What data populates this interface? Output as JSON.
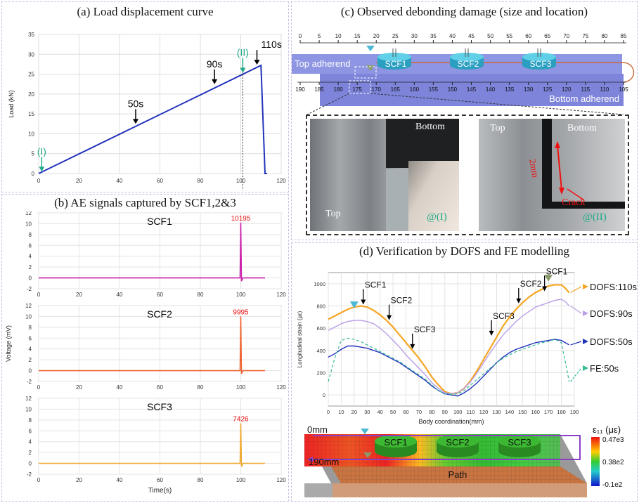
{
  "panels": {
    "a_title": "(a) Load displacement curve",
    "b_title": "(b) AE signals captured by SCF1,2&3",
    "c_title": "(c) Observed debonding damage (size and location)",
    "d_title": "(d) Verification by DOFS and FE modelling"
  },
  "colors": {
    "load_line": "#2233bb",
    "scf1": "#cc22aa",
    "scf2": "#ee6633",
    "scf3": "#eeaa33",
    "peak_label": "#ee1111",
    "marker_green": "#22aa88",
    "dofs110": "#f5a623",
    "dofs90": "#b99ee8",
    "dofs50": "#2233bb",
    "fe50": "#33bb99"
  },
  "chart_data": [
    {
      "id": "load-curve",
      "type": "line",
      "title": "(a) Load displacement curve",
      "xlabel": "",
      "ylabel": "Load (kN)",
      "xlim": [
        0,
        120
      ],
      "ylim": [
        0,
        35
      ],
      "xticks": [
        0,
        20,
        40,
        60,
        80,
        100,
        120
      ],
      "yticks": [
        0,
        5,
        10,
        15,
        20,
        25,
        30,
        35
      ],
      "grid": true,
      "series": [
        {
          "x": [
            0,
            110,
            110,
            112,
            113
          ],
          "y": [
            0,
            27.2,
            27.2,
            0,
            0
          ]
        }
      ],
      "annotations": [
        {
          "text": "(I)",
          "x": 1.5,
          "y": 0.3,
          "style": "green"
        },
        {
          "text": "50s",
          "x": 48,
          "y": 12.3
        },
        {
          "text": "90s",
          "x": 87,
          "y": 22.3
        },
        {
          "text": "(II)",
          "x": 101,
          "y": 25.2,
          "style": "green"
        },
        {
          "text": "110s",
          "x": 108,
          "y": 27.2
        }
      ]
    },
    {
      "id": "ae-signals",
      "type": "line",
      "title": "(b) AE signals captured by SCF1,2&3",
      "xlabel": "Time(s)",
      "ylabel": "Voltage (mV)",
      "xlim": [
        0,
        120
      ],
      "ylim": [
        -2,
        12
      ],
      "xticks": [
        0,
        20,
        40,
        60,
        80,
        100,
        120
      ],
      "yticks": [
        -2,
        0,
        2,
        4,
        6,
        8,
        10,
        12
      ],
      "grid": true,
      "series": [
        {
          "name": "SCF1",
          "peak_x": 100,
          "peak_y": 10.2,
          "peak_label": "10195",
          "end_x": 112
        },
        {
          "name": "SCF2",
          "peak_x": 100,
          "peak_y": 10.0,
          "peak_label": "9995",
          "end_x": 112
        },
        {
          "name": "SCF3",
          "peak_x": 100,
          "peak_y": 7.4,
          "peak_label": "7426",
          "end_x": 112
        }
      ]
    },
    {
      "id": "dofs-strain",
      "type": "line",
      "xlabel": "Body coordination(mm)",
      "ylabel": "Longitudinal strain (με)",
      "xlim": [
        0,
        190
      ],
      "ylim": [
        -100,
        1100
      ],
      "xticks": [
        0,
        10,
        20,
        30,
        40,
        50,
        60,
        70,
        80,
        90,
        100,
        110,
        120,
        130,
        140,
        150,
        160,
        170,
        180,
        190
      ],
      "yticks": [
        0,
        200,
        400,
        600,
        800,
        1000
      ],
      "grid": true,
      "legend": "right",
      "series": [
        {
          "name": "DOFS:110s",
          "x": [
            0,
            5,
            10,
            15,
            20,
            25,
            30,
            35,
            40,
            45,
            50,
            55,
            60,
            65,
            70,
            75,
            80,
            85,
            90,
            95,
            100,
            105,
            110,
            115,
            120,
            125,
            130,
            135,
            140,
            145,
            150,
            155,
            160,
            165,
            170,
            175,
            180,
            183,
            186
          ],
          "y": [
            680,
            710,
            740,
            770,
            790,
            800,
            790,
            760,
            720,
            670,
            610,
            540,
            470,
            400,
            330,
            250,
            160,
            90,
            30,
            10,
            20,
            60,
            130,
            220,
            320,
            420,
            520,
            620,
            700,
            770,
            830,
            880,
            920,
            950,
            980,
            990,
            990,
            960,
            920
          ]
        },
        {
          "name": "DOFS:90s",
          "x": [
            0,
            5,
            10,
            15,
            20,
            25,
            30,
            35,
            40,
            45,
            50,
            55,
            60,
            65,
            70,
            75,
            80,
            85,
            90,
            95,
            100,
            105,
            110,
            115,
            120,
            125,
            130,
            135,
            140,
            145,
            150,
            155,
            160,
            165,
            170,
            175,
            180,
            183,
            186
          ],
          "y": [
            580,
            610,
            640,
            660,
            670,
            670,
            660,
            640,
            600,
            550,
            490,
            430,
            360,
            300,
            240,
            180,
            110,
            60,
            20,
            10,
            20,
            60,
            120,
            200,
            290,
            380,
            460,
            540,
            600,
            660,
            710,
            750,
            790,
            810,
            830,
            850,
            860,
            840,
            800
          ]
        },
        {
          "name": "DOFS:50s",
          "x": [
            0,
            5,
            10,
            15,
            20,
            25,
            30,
            35,
            40,
            45,
            50,
            55,
            60,
            65,
            70,
            75,
            80,
            85,
            90,
            95,
            100,
            105,
            110,
            115,
            120,
            125,
            130,
            135,
            140,
            145,
            150,
            155,
            160,
            165,
            170,
            175,
            180,
            183,
            186
          ],
          "y": [
            340,
            370,
            410,
            440,
            440,
            430,
            420,
            400,
            380,
            350,
            320,
            290,
            250,
            210,
            170,
            130,
            80,
            40,
            10,
            0,
            -10,
            20,
            60,
            110,
            170,
            230,
            290,
            340,
            380,
            410,
            430,
            450,
            470,
            480,
            490,
            500,
            490,
            470,
            450
          ]
        },
        {
          "name": "FE:50s",
          "x": [
            0,
            5,
            10,
            15,
            20,
            25,
            30,
            35,
            40,
            45,
            50,
            55,
            60,
            65,
            70,
            75,
            80,
            85,
            90,
            95,
            100,
            105,
            110,
            115,
            120,
            125,
            130,
            135,
            140,
            145,
            150,
            155,
            160,
            165,
            170,
            175,
            180,
            183,
            186
          ],
          "y": [
            120,
            330,
            490,
            510,
            500,
            480,
            450,
            420,
            390,
            360,
            330,
            300,
            260,
            220,
            180,
            140,
            90,
            40,
            10,
            5,
            10,
            40,
            90,
            140,
            190,
            240,
            290,
            330,
            360,
            390,
            410,
            430,
            450,
            470,
            480,
            500,
            470,
            300,
            120
          ]
        }
      ],
      "annotations": [
        {
          "text": "SCF1",
          "x": 27,
          "y": 800
        },
        {
          "text": "SCF2",
          "x": 47,
          "y": 660
        },
        {
          "text": "SCF3",
          "x": 65,
          "y": 400
        },
        {
          "text": "SCF3",
          "x": 126,
          "y": 520
        },
        {
          "text": "SCF2",
          "x": 147,
          "y": 810
        },
        {
          "text": "SCF1",
          "x": 167,
          "y": 920
        }
      ]
    }
  ],
  "panel_c": {
    "top_ruler": [
      "0",
      "5",
      "10",
      "15",
      "20",
      "25",
      "30",
      "35",
      "40",
      "45",
      "50",
      "55",
      "60",
      "65",
      "70",
      "75",
      "80",
      "85"
    ],
    "bottom_ruler": [
      "190",
      "185",
      "180",
      "175",
      "170",
      "165",
      "160",
      "155",
      "150",
      "145",
      "140",
      "135",
      "130",
      "125",
      "120",
      "115",
      "110",
      "105"
    ],
    "top_adherend": "Top adherend",
    "bottom_adherend": "Bottom adherend",
    "sensors": [
      "SCF1",
      "SCF2",
      "SCF3"
    ],
    "photo1": {
      "top_label": "Bottom",
      "bottom_label": "Top",
      "tag": "@(I)"
    },
    "photo2": {
      "top_left": "Top",
      "top_right": "Bottom",
      "dim": "2mm",
      "crack": "Crack",
      "tag": "@(II)"
    }
  },
  "panel_d": {
    "fe": {
      "start_label": "0mm",
      "end_label": "190mm",
      "path_label": "Path",
      "sensors": [
        "SCF1",
        "SCF2",
        "SCF3"
      ],
      "colorbar_title": "ε₁₁ (με)",
      "colorbar_ticks": [
        "0.47e3",
        "0.38e2",
        "-0.1e2"
      ]
    }
  }
}
